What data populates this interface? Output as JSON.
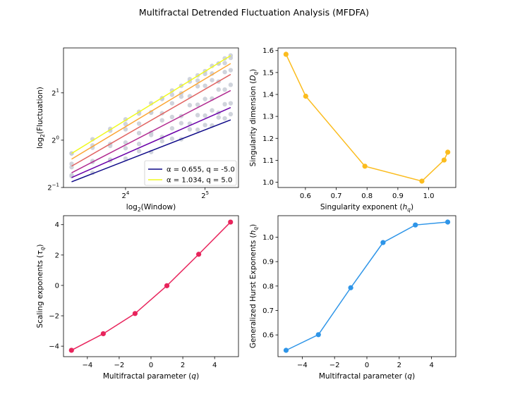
{
  "title": "Multifractal Detrended Fluctuation Analysis (MFDFA)",
  "chart_data": [
    {
      "type": "scatter",
      "xlabel": "log_2(Window)",
      "ylabel": "log_2(Fluctuation)",
      "x_scale": "log2",
      "y_scale": "log2",
      "xlim_log2": [
        3.22,
        5.42
      ],
      "ylim_log2": [
        -1.0,
        1.95
      ],
      "x_ticks": [
        "2^4",
        "2^5"
      ],
      "x_tick_values_log2": [
        4,
        5
      ],
      "y_ticks": [
        "2^-1",
        "2^0",
        "2^1"
      ],
      "y_tick_values_log2": [
        -1,
        0,
        1
      ],
      "grid": false,
      "legend_position": "lower-right",
      "legend": [
        {
          "label": "α = 0.655, q = -5.0",
          "color": "#0d0887"
        },
        {
          "label": "α = 1.034, q = 5.0",
          "color": "#f0f921"
        }
      ],
      "point_color": "#c8ccd6",
      "windows": [
        10,
        12,
        14,
        16,
        18,
        20,
        22,
        24,
        26,
        28,
        30,
        32,
        34,
        36,
        38,
        40
      ],
      "scatter_log2_fluctuation": [
        [
          -0.76,
          -0.69,
          -0.41,
          -0.39,
          -0.23,
          -0.25,
          -0.02,
          0.03,
          0.02,
          0.23,
          0.22,
          0.32,
          0.31,
          0.48,
          0.46,
          0.55
        ],
        [
          -0.74,
          -0.46,
          -0.43,
          -0.17,
          -0.08,
          0.11,
          0.07,
          0.25,
          0.36,
          0.35,
          0.53,
          0.52,
          0.63,
          0.58,
          0.76,
          0.78
        ],
        [
          -0.57,
          -0.44,
          -0.12,
          -0.05,
          0.15,
          0.16,
          0.42,
          0.49,
          0.51,
          0.74,
          0.75,
          0.87,
          0.88,
          1.07,
          1.07,
          1.17
        ],
        [
          -0.5,
          -0.16,
          -0.08,
          0.23,
          0.35,
          0.58,
          0.57,
          0.78,
          0.92,
          0.93,
          1.14,
          1.15,
          1.27,
          1.24,
          1.44,
          1.48
        ],
        [
          -0.28,
          -0.11,
          0.24,
          0.34,
          0.56,
          0.59,
          0.87,
          0.96,
          0.99,
          1.24,
          1.26,
          1.4,
          1.41,
          1.62,
          1.63,
          1.74
        ],
        [
          -0.28,
          0.02,
          0.2,
          0.44,
          0.6,
          0.78,
          0.89,
          1.05,
          1.15,
          1.29,
          1.37,
          1.46,
          1.57,
          1.62,
          1.73,
          1.79
        ]
      ],
      "fit_lines": [
        {
          "q": -5,
          "alpha": 0.655,
          "intercept_log2": -3.056,
          "color": "#0d0887"
        },
        {
          "q": -3,
          "alpha": 0.74,
          "intercept_log2": -3.248,
          "color": "#6a00a8"
        },
        {
          "q": -1,
          "alpha": 0.87,
          "intercept_log2": -3.58,
          "color": "#b12a90"
        },
        {
          "q": 1,
          "alpha": 0.97,
          "intercept_log2": -3.772,
          "color": "#e16462"
        },
        {
          "q": 3,
          "alpha": 1.01,
          "intercept_log2": -3.755,
          "color": "#fca636"
        },
        {
          "q": 5,
          "alpha": 1.034,
          "intercept_log2": -3.715,
          "color": "#f0f921"
        }
      ]
    },
    {
      "type": "line",
      "xlabel": "Singularity exponent (h_q)",
      "ylabel": "Singularity dimension (D_q)",
      "xlim": [
        0.511,
        1.088
      ],
      "ylim": [
        0.976,
        1.612
      ],
      "x_ticks": [
        "0.6",
        "0.7",
        "0.8",
        "0.9",
        "1.0"
      ],
      "y_ticks": [
        "1.0",
        "1.1",
        "1.2",
        "1.3",
        "1.4",
        "1.5",
        "1.6"
      ],
      "grid": false,
      "color": "#fbbc1e",
      "x": [
        0.537,
        0.601,
        0.793,
        0.978,
        1.05,
        1.062
      ],
      "y": [
        1.583,
        1.392,
        1.073,
        1.005,
        1.101,
        1.137
      ]
    },
    {
      "type": "line",
      "xlabel": "Multifractal parameter (q)",
      "ylabel": "Scaling exponents (τ_q)",
      "xlim": [
        -5.5,
        5.5
      ],
      "ylim": [
        -4.69,
        4.59
      ],
      "x_ticks": [
        "−4",
        "−2",
        "0",
        "2",
        "4"
      ],
      "y_ticks": [
        "−4",
        "−2",
        "0",
        "2",
        "4"
      ],
      "grid": false,
      "color": "#e8245c",
      "x": [
        -5,
        -3,
        -1,
        1,
        3,
        5
      ],
      "y": [
        -4.27,
        -3.18,
        -1.85,
        -0.02,
        2.05,
        4.17
      ]
    },
    {
      "type": "line",
      "xlabel": "Multifractal parameter (q)",
      "ylabel": "Generalized Hurst Exponents (h_q)",
      "xlim": [
        -5.5,
        5.5
      ],
      "ylim": [
        0.511,
        1.088
      ],
      "x_ticks": [
        "−4",
        "−2",
        "0",
        "2",
        "4"
      ],
      "y_ticks": [
        "0.6",
        "0.7",
        "0.8",
        "0.9",
        "1.0"
      ],
      "grid": false,
      "color": "#2e95e8",
      "x": [
        -5,
        -3,
        -1,
        1,
        3,
        5
      ],
      "y": [
        0.537,
        0.601,
        0.793,
        0.978,
        1.05,
        1.062
      ]
    }
  ]
}
